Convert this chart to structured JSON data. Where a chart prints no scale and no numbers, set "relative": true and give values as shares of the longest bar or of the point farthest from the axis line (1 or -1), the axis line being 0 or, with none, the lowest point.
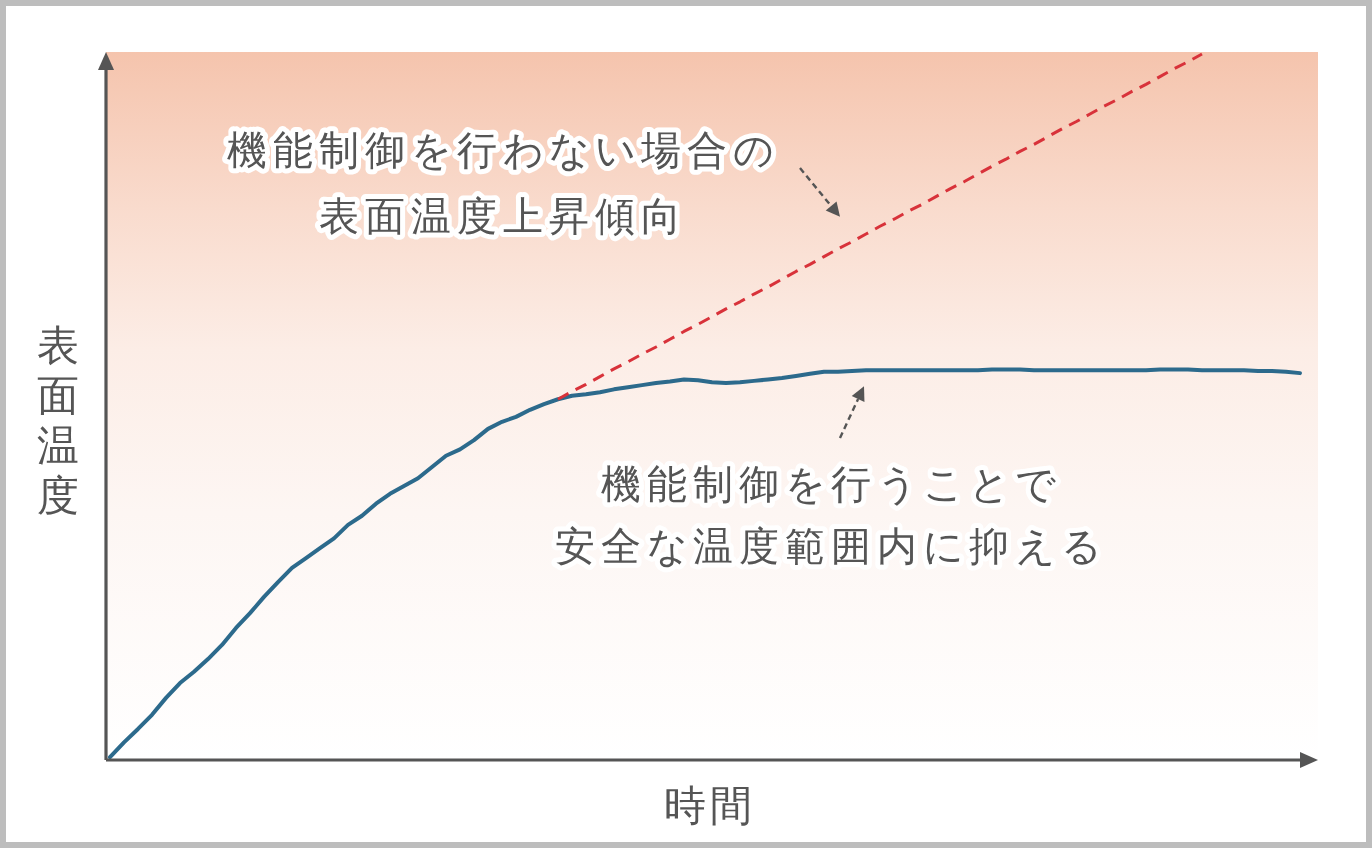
{
  "chart_data": {
    "type": "line",
    "relative": true,
    "xlabel": "時間",
    "ylabel": "表面温度",
    "categories": [
      null,
      null,
      null,
      null,
      null,
      null,
      null,
      null,
      null,
      null,
      null,
      null,
      null,
      null,
      null,
      null,
      null,
      null,
      null,
      null,
      null,
      null,
      null,
      null,
      null,
      null,
      null,
      null,
      null,
      null,
      null,
      null,
      null,
      null,
      null,
      null,
      null,
      null,
      null,
      null,
      null,
      null,
      null,
      null,
      null,
      null,
      null,
      null,
      null,
      null,
      null,
      null,
      null,
      null,
      null,
      null,
      null,
      null,
      null,
      null,
      null,
      null,
      null,
      null,
      null,
      null,
      null,
      null,
      null,
      null,
      null,
      null,
      null,
      null,
      null,
      null,
      null,
      null,
      null,
      null,
      null,
      null,
      null,
      null,
      null,
      null
    ],
    "series": [
      {
        "color": "#2c6a8c",
        "values": [
          0.004,
          0.025,
          0.044,
          0.064,
          0.088,
          0.109,
          0.125,
          0.143,
          0.163,
          0.187,
          0.208,
          0.231,
          0.252,
          0.272,
          0.286,
          0.3,
          0.314,
          0.333,
          0.346,
          0.363,
          0.377,
          0.388,
          0.399,
          0.415,
          0.431,
          0.44,
          0.453,
          0.469,
          0.479,
          0.486,
          0.496,
          0.504,
          0.511,
          0.516,
          0.518,
          0.521,
          0.525,
          0.528,
          0.531,
          0.534,
          0.536,
          0.539,
          0.538,
          0.535,
          0.534,
          0.535,
          0.537,
          0.539,
          0.541,
          0.544,
          0.547,
          0.55,
          0.55,
          0.551,
          0.552,
          0.552,
          0.552,
          0.552,
          0.552,
          0.552,
          0.552,
          0.552,
          0.552,
          0.553,
          0.553,
          0.553,
          0.552,
          0.552,
          0.552,
          0.552,
          0.552,
          0.552,
          0.552,
          0.552,
          0.552,
          0.553,
          0.553,
          0.553,
          0.552,
          0.552,
          0.552,
          0.552,
          0.551,
          0.551,
          0.55,
          0.548
        ]
      },
      {
        "color": "#d8323a",
        "line_style": "dashed",
        "values": [
          null,
          null,
          null,
          null,
          null,
          null,
          null,
          null,
          null,
          null,
          null,
          null,
          null,
          null,
          null,
          null,
          null,
          null,
          null,
          null,
          null,
          null,
          null,
          null,
          null,
          null,
          null,
          null,
          null,
          null,
          null,
          null,
          0.511,
          0.522,
          0.532,
          0.543,
          0.554,
          0.564,
          0.575,
          0.585,
          0.596,
          0.607,
          0.617,
          0.628,
          0.639,
          0.649,
          0.66,
          0.67,
          0.681,
          0.692,
          0.702,
          0.713,
          0.724,
          0.734,
          0.745,
          0.756,
          0.766,
          0.777,
          0.787,
          0.798,
          0.809,
          0.819,
          0.83,
          0.841,
          0.851,
          0.862,
          0.872,
          0.883,
          0.894,
          0.904,
          0.915,
          0.926,
          0.936,
          0.947,
          0.957,
          0.968,
          0.979,
          0.989,
          1.0,
          null,
          null,
          null,
          null,
          null,
          null,
          null
        ]
      }
    ],
    "annotations": [
      "機能制御を行わない場合の表面温度上昇傾向",
      "機能制御を行うことで安全な温度範囲内に抑える"
    ]
  }
}
